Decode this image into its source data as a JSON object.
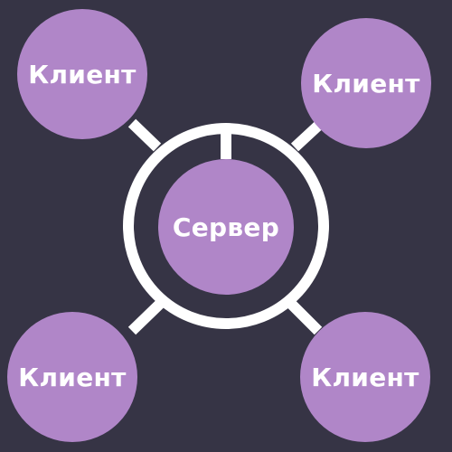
{
  "colors": {
    "background": "#363445",
    "node_fill": "#b086c8",
    "connector": "#ffffff",
    "text": "#ffffff"
  },
  "nodes": {
    "server": {
      "label": "Сервер"
    },
    "clients": [
      {
        "label": "Клиент"
      },
      {
        "label": "Клиент"
      },
      {
        "label": "Клиент"
      },
      {
        "label": "Клиент"
      }
    ]
  }
}
